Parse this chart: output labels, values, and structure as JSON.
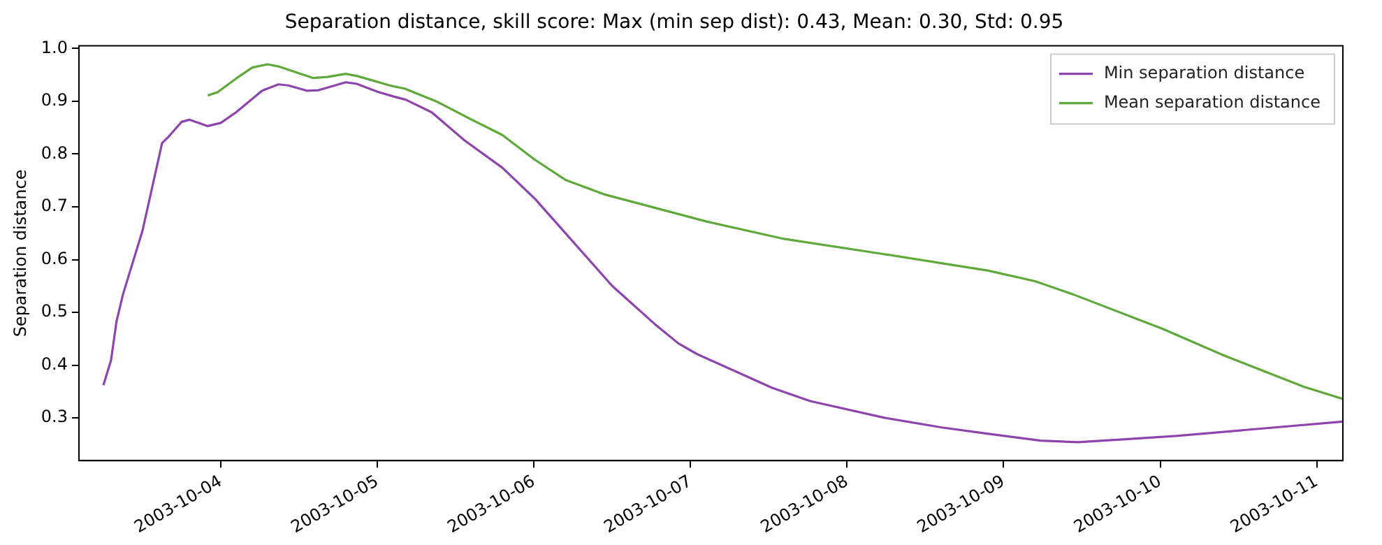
{
  "chart_data": {
    "type": "line",
    "title": "Separation distance, skill score: Max (min sep dist): 0.43, Mean: 0.30, Std: 0.95",
    "ylabel": "Separation distance",
    "xlim": [
      "2003-10-03T02:15",
      "2003-10-11T04:00"
    ],
    "xticks": [
      "2003-10-04",
      "2003-10-05",
      "2003-10-06",
      "2003-10-07",
      "2003-10-08",
      "2003-10-09",
      "2003-10-10",
      "2003-10-11"
    ],
    "ylim": [
      0.219,
      1.005
    ],
    "yticks": [
      0.3,
      0.4,
      0.5,
      0.6,
      0.7,
      0.8,
      0.9,
      {
        "value": 1,
        "label": "1.0"
      }
    ],
    "grid": false,
    "legend": "top right",
    "marker": "none",
    "line_style": "solid",
    "series": [
      {
        "name": "Min separation distance",
        "color": "#8e44ad",
        "x": [
          "2003-10-03T06:00",
          "2003-10-03T07:10",
          "2003-10-03T08:00",
          "2003-10-03T09:00",
          "2003-10-03T12:00",
          "2003-10-03T15:00",
          "2003-10-03T16:00",
          "2003-10-03T18:00",
          "2003-10-03T19:10",
          "2003-10-03T22:00",
          "2003-10-04T00:00",
          "2003-10-04T02:20",
          "2003-10-04T06:20",
          "2003-10-04T08:50",
          "2003-10-04T10:20",
          "2003-10-04T13:10",
          "2003-10-04T15:00",
          "2003-10-04T19:10",
          "2003-10-04T20:50",
          "2003-10-05T00:00",
          "2003-10-05T02:30",
          "2003-10-05T04:20",
          "2003-10-05T08:20",
          "2003-10-05T13:20",
          "2003-10-05T19:10",
          "2003-10-06T00:10",
          "2003-10-06T12:00",
          "2003-10-06T18:30",
          "2003-10-06T22:10",
          "2003-10-07T01:00",
          "2003-10-07T12:30",
          "2003-10-07T18:20",
          "2003-10-08T05:50",
          "2003-10-08T14:30",
          "2003-10-08T21:40",
          "2003-10-09T05:40",
          "2003-10-09T11:20",
          "2003-10-09T17:50",
          "2003-10-10T02:30",
          "2003-10-11T04:00"
        ],
        "values": [
          0.362,
          0.409,
          0.482,
          0.534,
          0.655,
          0.821,
          0.833,
          0.861,
          0.865,
          0.853,
          0.859,
          0.879,
          0.92,
          0.932,
          0.93,
          0.92,
          0.921,
          0.936,
          0.933,
          0.918,
          0.909,
          0.903,
          0.879,
          0.826,
          0.774,
          0.715,
          0.55,
          0.478,
          0.441,
          0.421,
          0.357,
          0.332,
          0.3,
          0.282,
          0.27,
          0.257,
          0.254,
          0.259,
          0.266,
          0.293
        ]
      },
      {
        "name": "Mean separation distance",
        "color": "#5fa83a",
        "x": [
          "2003-10-03T22:00",
          "2003-10-03T23:30",
          "2003-10-04T02:20",
          "2003-10-04T04:50",
          "2003-10-04T07:10",
          "2003-10-04T08:50",
          "2003-10-04T14:10",
          "2003-10-04T16:20",
          "2003-10-04T19:10",
          "2003-10-04T20:50",
          "2003-10-05T02:10",
          "2003-10-05T04:10",
          "2003-10-05T09:00",
          "2003-10-05T14:10",
          "2003-10-05T19:10",
          "2003-10-06T00:10",
          "2003-10-06T04:50",
          "2003-10-06T10:40",
          "2003-10-07T02:30",
          "2003-10-07T14:00",
          "2003-10-08T05:50",
          "2003-10-08T21:40",
          "2003-10-09T04:50",
          "2003-10-09T10:40",
          "2003-10-10T00:20",
          "2003-10-10T09:50",
          "2003-10-10T22:00",
          "2003-10-11T04:00"
        ],
        "values": [
          0.911,
          0.917,
          0.943,
          0.964,
          0.97,
          0.966,
          0.944,
          0.946,
          0.952,
          0.948,
          0.929,
          0.924,
          0.9,
          0.867,
          0.836,
          0.789,
          0.751,
          0.724,
          0.672,
          0.64,
          0.61,
          0.579,
          0.559,
          0.534,
          0.469,
          0.418,
          0.359,
          0.336
        ]
      }
    ]
  }
}
